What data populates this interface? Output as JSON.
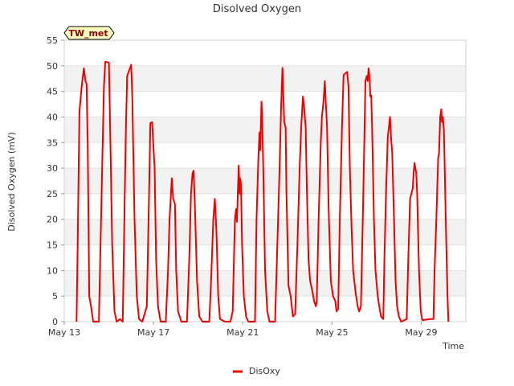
{
  "chart_data": {
    "type": "line",
    "title": "Disolved Oxygen",
    "xlabel": "Time",
    "ylabel": "Disolved Oxygen (mV)",
    "station_label": "TW_met",
    "ylim": [
      0,
      55
    ],
    "xlim": [
      0,
      18
    ],
    "yticks": [
      0,
      5,
      10,
      15,
      20,
      25,
      30,
      35,
      40,
      45,
      50,
      55
    ],
    "xticks": [
      {
        "value": 0,
        "label": "May 13"
      },
      {
        "value": 4,
        "label": "May 17"
      },
      {
        "value": 8,
        "label": "May 21"
      },
      {
        "value": 12,
        "label": "May 25"
      },
      {
        "value": 16,
        "label": "May 29"
      }
    ],
    "grid": "horizontal bands",
    "legend_position": "bottom-center",
    "series": [
      {
        "name": "DisOxy",
        "color": "#ee0000",
        "points": [
          [
            0.55,
            0
          ],
          [
            0.6,
            15
          ],
          [
            0.68,
            41
          ],
          [
            0.78,
            46
          ],
          [
            0.88,
            49.5
          ],
          [
            0.95,
            47
          ],
          [
            1.0,
            46.5
          ],
          [
            1.05,
            35
          ],
          [
            1.12,
            5
          ],
          [
            1.2,
            3
          ],
          [
            1.3,
            0
          ],
          [
            1.55,
            0
          ],
          [
            1.7,
            30
          ],
          [
            1.78,
            46
          ],
          [
            1.84,
            50.8
          ],
          [
            2.0,
            50.6
          ],
          [
            2.05,
            40
          ],
          [
            2.15,
            15
          ],
          [
            2.25,
            2
          ],
          [
            2.35,
            0
          ],
          [
            2.5,
            0.5
          ],
          [
            2.62,
            0
          ],
          [
            2.75,
            35
          ],
          [
            2.82,
            48
          ],
          [
            2.9,
            49
          ],
          [
            3.0,
            50.2
          ],
          [
            3.05,
            44
          ],
          [
            3.15,
            20
          ],
          [
            3.25,
            5
          ],
          [
            3.35,
            0.5
          ],
          [
            3.5,
            0
          ],
          [
            3.7,
            3
          ],
          [
            3.8,
            25
          ],
          [
            3.86,
            38.8
          ],
          [
            3.94,
            39
          ],
          [
            4.0,
            34
          ],
          [
            4.05,
            30
          ],
          [
            4.12,
            12
          ],
          [
            4.2,
            3
          ],
          [
            4.32,
            0
          ],
          [
            4.55,
            0
          ],
          [
            4.65,
            10
          ],
          [
            4.72,
            20
          ],
          [
            4.82,
            28
          ],
          [
            4.88,
            24
          ],
          [
            4.96,
            23
          ],
          [
            5.02,
            10
          ],
          [
            5.1,
            2
          ],
          [
            5.25,
            0
          ],
          [
            5.5,
            0
          ],
          [
            5.6,
            12
          ],
          [
            5.68,
            25
          ],
          [
            5.75,
            29
          ],
          [
            5.8,
            29.5
          ],
          [
            5.86,
            22
          ],
          [
            5.95,
            8
          ],
          [
            6.05,
            1
          ],
          [
            6.2,
            0
          ],
          [
            6.5,
            0
          ],
          [
            6.58,
            8
          ],
          [
            6.68,
            20
          ],
          [
            6.75,
            24
          ],
          [
            6.82,
            18
          ],
          [
            6.9,
            5
          ],
          [
            6.98,
            0.5
          ],
          [
            7.2,
            0
          ],
          [
            7.45,
            0
          ],
          [
            7.55,
            2
          ],
          [
            7.65,
            20
          ],
          [
            7.7,
            22
          ],
          [
            7.74,
            19.5
          ],
          [
            7.78,
            25
          ],
          [
            7.82,
            30.5
          ],
          [
            7.86,
            25
          ],
          [
            7.88,
            28
          ],
          [
            7.92,
            27
          ],
          [
            7.97,
            15
          ],
          [
            8.05,
            5
          ],
          [
            8.15,
            1
          ],
          [
            8.25,
            0
          ],
          [
            8.55,
            0
          ],
          [
            8.62,
            20
          ],
          [
            8.7,
            32
          ],
          [
            8.75,
            37
          ],
          [
            8.78,
            33.5
          ],
          [
            8.84,
            43
          ],
          [
            8.88,
            38
          ],
          [
            8.92,
            30
          ],
          [
            9.0,
            10
          ],
          [
            9.1,
            2
          ],
          [
            9.2,
            0
          ],
          [
            9.45,
            0
          ],
          [
            9.55,
            15
          ],
          [
            9.65,
            30
          ],
          [
            9.72,
            42
          ],
          [
            9.78,
            49.6
          ],
          [
            9.82,
            44
          ],
          [
            9.86,
            39
          ],
          [
            9.92,
            38
          ],
          [
            9.96,
            25
          ],
          [
            10.05,
            7
          ],
          [
            10.15,
            5
          ],
          [
            10.25,
            1
          ],
          [
            10.35,
            1.5
          ],
          [
            10.45,
            15
          ],
          [
            10.55,
            30
          ],
          [
            10.62,
            38
          ],
          [
            10.7,
            44
          ],
          [
            10.75,
            42
          ],
          [
            10.82,
            38
          ],
          [
            10.88,
            25
          ],
          [
            10.95,
            12
          ],
          [
            11.02,
            8
          ],
          [
            11.12,
            6
          ],
          [
            11.2,
            4
          ],
          [
            11.28,
            3
          ],
          [
            11.32,
            4
          ],
          [
            11.4,
            20
          ],
          [
            11.5,
            35
          ],
          [
            11.55,
            40
          ],
          [
            11.62,
            43
          ],
          [
            11.68,
            47
          ],
          [
            11.72,
            43
          ],
          [
            11.78,
            38
          ],
          [
            11.85,
            22
          ],
          [
            11.95,
            8
          ],
          [
            12.05,
            5
          ],
          [
            12.15,
            4
          ],
          [
            12.2,
            2
          ],
          [
            12.28,
            2.5
          ],
          [
            12.35,
            20
          ],
          [
            12.45,
            38
          ],
          [
            12.52,
            48.2
          ],
          [
            12.62,
            48.6
          ],
          [
            12.68,
            48.8
          ],
          [
            12.74,
            46
          ],
          [
            12.8,
            30
          ],
          [
            12.88,
            18
          ],
          [
            12.95,
            10
          ],
          [
            13.05,
            6
          ],
          [
            13.15,
            3
          ],
          [
            13.22,
            2
          ],
          [
            13.3,
            3
          ],
          [
            13.38,
            20
          ],
          [
            13.45,
            35
          ],
          [
            13.5,
            47
          ],
          [
            13.56,
            48
          ],
          [
            13.6,
            47
          ],
          [
            13.64,
            49.5
          ],
          [
            13.68,
            48
          ],
          [
            13.72,
            44
          ],
          [
            13.76,
            44.2
          ],
          [
            13.8,
            38
          ],
          [
            13.88,
            20
          ],
          [
            13.95,
            10
          ],
          [
            14.05,
            5
          ],
          [
            14.12,
            3
          ],
          [
            14.2,
            1
          ],
          [
            14.3,
            0.5
          ],
          [
            14.35,
            12
          ],
          [
            14.42,
            25
          ],
          [
            14.5,
            36
          ],
          [
            14.55,
            38
          ],
          [
            14.6,
            40
          ],
          [
            14.65,
            36
          ],
          [
            14.7,
            33
          ],
          [
            14.78,
            20
          ],
          [
            14.85,
            8
          ],
          [
            14.92,
            3
          ],
          [
            15.0,
            1
          ],
          [
            15.1,
            0
          ],
          [
            15.35,
            0.5
          ],
          [
            15.42,
            12
          ],
          [
            15.5,
            24
          ],
          [
            15.56,
            25
          ],
          [
            15.62,
            26
          ],
          [
            15.66,
            29
          ],
          [
            15.7,
            31
          ],
          [
            15.74,
            30
          ],
          [
            15.78,
            29
          ],
          [
            15.82,
            25
          ],
          [
            15.9,
            10
          ],
          [
            15.98,
            2
          ],
          [
            16.05,
            0.3
          ],
          [
            16.4,
            0.5
          ],
          [
            16.55,
            0.5
          ],
          [
            16.6,
            10
          ],
          [
            16.68,
            20
          ],
          [
            16.72,
            26
          ],
          [
            16.76,
            32
          ],
          [
            16.8,
            33
          ],
          [
            16.85,
            40
          ],
          [
            16.9,
            41.5
          ],
          [
            16.93,
            39
          ],
          [
            16.97,
            40
          ],
          [
            17.02,
            37
          ],
          [
            17.1,
            20
          ],
          [
            17.18,
            5
          ],
          [
            17.22,
            0
          ]
        ]
      }
    ]
  }
}
